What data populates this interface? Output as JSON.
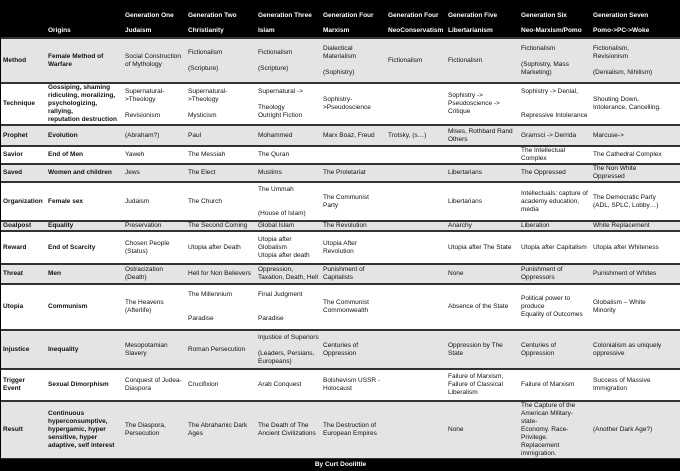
{
  "header": {
    "columns": [
      {
        "line1": "",
        "line2": ""
      },
      {
        "line1": "",
        "line2": "Origins"
      },
      {
        "line1": "Generation One",
        "line2": "Judaism"
      },
      {
        "line1": "Generation Two",
        "line2": "Christianity"
      },
      {
        "line1": "Generation Three",
        "line2": "Islam"
      },
      {
        "line1": "Generation Four",
        "line2": "Marxism"
      },
      {
        "line1": "Generation Four",
        "line2": "NeoConservatism"
      },
      {
        "line1": "Generation Five",
        "line2": "Libertarianism"
      },
      {
        "line1": "Generation Six",
        "line2": "Neo-Marxism/Pomo"
      },
      {
        "line1": "Generation Seven",
        "line2": "Pomo->PC->Woke"
      }
    ]
  },
  "rows": [
    {
      "label": "Method",
      "origins": "Female Method of\nWarfare",
      "gray": true,
      "cells": [
        "Social Construction\nof Mythology",
        "Fictionalism\n\n(Scripture)",
        "Fictionalism\n\n(Scripture)",
        "Dialectical\nMaterialism\n\n(Sophistry)",
        "Fictionalism",
        "Fictionalism",
        "Fictionalism\n\n(Sophistry, Mass\nMarketing)",
        "Fictionalism,\nRevisionism\n\n(Denialism, Nihilism)"
      ]
    },
    {
      "label": "Technique",
      "origins": "Gossiping, shaming\nridiculing, moralizing,\npsychologizing, rallying,\nreputation destruction",
      "gray": false,
      "cells": [
        "Supernatural-\n>Theology\n\nRevisionism",
        "Supernatural-\n>Theology\n\nMysticism",
        "Supernatural ->\n\nTheology\nOutright Fiction",
        "Sophistry-\n>Pseudoscience",
        "",
        "Sophistry ->\nPseudoscience ->\nCritique",
        "Sophistry -> Denial,\n\n\nRepressive Intolerance",
        "Shouting Down,\nIntolerance, Cancelling."
      ]
    },
    {
      "label": "Prophet",
      "origins": "Evolution",
      "gray": true,
      "cells": [
        "(Abraham?)",
        "Paul",
        "Mohammed",
        "Marx Boaz, Freud",
        "Trotsky, (s…)",
        "Mises, Rothbard Rand\nOthers",
        "Gramsci -> Derrida",
        "Marcuse->"
      ]
    },
    {
      "label": "Savior",
      "origins": "End of Men",
      "gray": false,
      "cells": [
        "Yaweh",
        "The Messiah",
        "The Quran",
        "",
        "",
        "",
        "The Intellectual Complex",
        "The Cathedral Complex"
      ]
    },
    {
      "label": "Saved",
      "origins": "Women and children",
      "gray": true,
      "cells": [
        "Jews",
        "The Elect",
        "Muslims",
        "The Proletariat",
        "",
        "Libertarians",
        "The Oppressed",
        "The Non White\nOppressed"
      ]
    },
    {
      "label": "Organization",
      "origins": "Female sex",
      "gray": false,
      "cells": [
        "Judaism",
        "The Church",
        "The Ummah\n\n\n(House of Islam)",
        "The Communist\nParty",
        "",
        "Libertarians",
        "Intellectuals: capture of\nacademy education, media",
        "The Democratic Party\n(ADL, SPLC, Lobby…)"
      ]
    },
    {
      "label": "Goalpost",
      "origins": "Equality",
      "gray": true,
      "cells": [
        "Preservation",
        "The Second Coming",
        "Global Islam",
        "The Revolution",
        "",
        "Anarchy",
        "Liberation",
        "White Replacement"
      ]
    },
    {
      "label": "Reward",
      "origins": "End of Scarcity",
      "gray": false,
      "cells": [
        "Chosen People\n(Status)",
        "Utopia after Death",
        "Utopia after\nGlobalism\nUtopia after death",
        "Utopia After\nRevolution",
        "",
        "Utopia after The State",
        "Utopia after Capitalism",
        "Utopia after Whiteness"
      ]
    },
    {
      "label": "Threat",
      "origins": "Men",
      "gray": true,
      "cells": [
        "Ostracization\n(Death)",
        "Hell for Non Believers",
        "Oppression,\nTaxation, Death, Hell",
        "Punishment of\nCapitalists",
        "",
        "None",
        "Punishment of Oppressors",
        "Punishment of Whites"
      ]
    },
    {
      "label": "Utopia",
      "origins": "Communism",
      "gray": false,
      "cells": [
        "The Heavens\n(Afterlife)",
        "The Millennium\n\n\nParadise",
        "Final Judgment\n\n\nParadise",
        "The Communist\nCommonwealth",
        "",
        "Absence of the State",
        "Political power to produce\nEquality of Outcomes",
        "Globalism – White\nMinority"
      ]
    },
    {
      "label": "Injustice",
      "origins": "Inequality",
      "gray": true,
      "cells": [
        "Mesopotamian\nSlavery",
        "Roman Persecution",
        "Injustice of Superiors\n\n(Leaders, Persians,\nEuropeans)",
        "Centuries of\nOppression",
        "",
        "Oppression by The\nState",
        "Centuries of Oppression",
        "Colonialism as uniquely\noppressive"
      ]
    },
    {
      "label": "Trigger Event",
      "origins": "Sexual Dimorphism",
      "gray": false,
      "cells": [
        "Conquest of Judea-\nDiaspora",
        "Crucifixion",
        "Arab Conquest",
        "Bolshevism USSR -\nHolocaust",
        "",
        "Failure of Marxism,\nFailure of Classical\nLiberalism",
        "Failure of Marxism",
        "Success of Massive\nImmigration"
      ]
    },
    {
      "label": "Result",
      "origins": "Continuous\nhyperconsumptive,\nhypergamic, hyper\nsensitive, hyper\nadaptive, self interest",
      "gray": true,
      "cells": [
        "The Diaspora,\nPersecution",
        "The Abrahamic Dark\nAges",
        "The Death of The\nAncient Civilizations",
        "The Destruction of\nEuropean Empires",
        "",
        "None",
        "The Capture of the\nAmerican Military-state-\nEconomy. Race-Privilege.\nReplacement immigration.",
        "(Another Dark Age?)"
      ]
    }
  ],
  "footer": {
    "credit": "By Curt Doolittle"
  },
  "colors": {
    "header_bg": "#000000",
    "row_gray": "#e4e4e4",
    "row_white": "#ffffff"
  }
}
